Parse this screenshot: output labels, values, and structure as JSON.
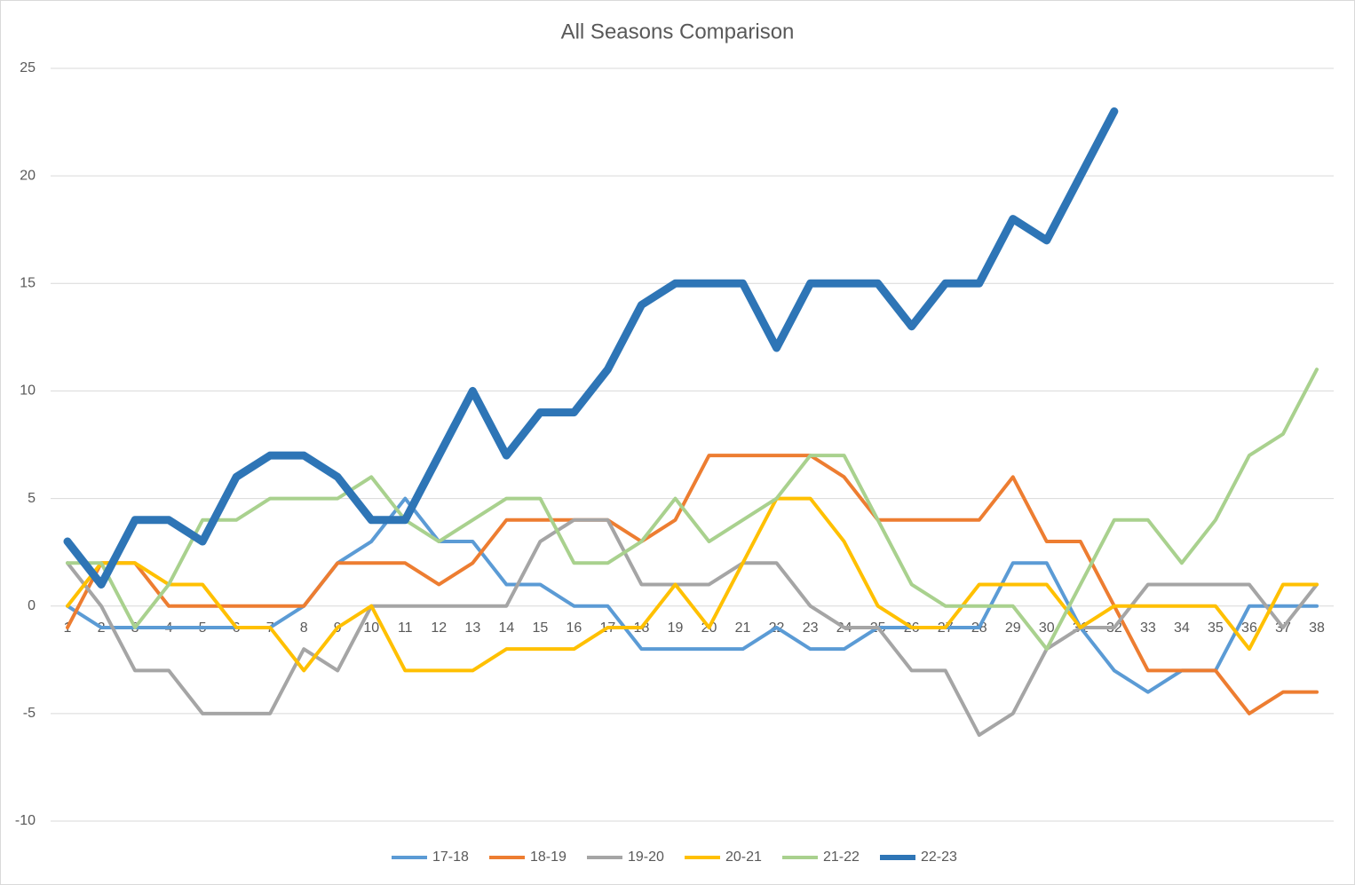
{
  "chart_data": {
    "type": "line",
    "title": "All Seasons Comparison",
    "categories": [
      "1",
      "2",
      "3",
      "4",
      "5",
      "6",
      "7",
      "8",
      "9",
      "10",
      "11",
      "12",
      "13",
      "14",
      "15",
      "16",
      "17",
      "18",
      "19",
      "20",
      "21",
      "22",
      "23",
      "24",
      "25",
      "26",
      "27",
      "28",
      "29",
      "30",
      "31",
      "32",
      "33",
      "34",
      "35",
      "36",
      "37",
      "38"
    ],
    "ylim": [
      -10,
      25
    ],
    "yticks": [
      -10,
      -5,
      0,
      5,
      10,
      15,
      20,
      25
    ],
    "grid": true,
    "legend": "bottom",
    "series": [
      {
        "name": "17-18",
        "color": "#5b9bd5",
        "width": 4,
        "values": [
          0,
          -1,
          -1,
          -1,
          -1,
          -1,
          -1,
          0,
          2,
          3,
          5,
          3,
          3,
          1,
          1,
          0,
          0,
          -2,
          -2,
          -2,
          -2,
          -1,
          -2,
          -2,
          -1,
          -1,
          -1,
          -1,
          2,
          2,
          -1,
          -3,
          -4,
          -3,
          -3,
          0,
          0,
          0
        ]
      },
      {
        "name": "18-19",
        "color": "#ed7d31",
        "width": 4,
        "values": [
          -1,
          2,
          2,
          0,
          0,
          0,
          0,
          0,
          2,
          2,
          2,
          1,
          2,
          4,
          4,
          4,
          4,
          3,
          4,
          7,
          7,
          7,
          7,
          6,
          4,
          4,
          4,
          4,
          6,
          3,
          3,
          0,
          -3,
          -3,
          -3,
          -5,
          -4,
          -4
        ]
      },
      {
        "name": "19-20",
        "color": "#a5a5a5",
        "width": 4,
        "values": [
          2,
          0,
          -3,
          -3,
          -5,
          -5,
          -5,
          -2,
          -3,
          0,
          0,
          0,
          0,
          0,
          3,
          4,
          4,
          1,
          1,
          1,
          2,
          2,
          0,
          -1,
          -1,
          -3,
          -3,
          -6,
          -5,
          -2,
          -1,
          -1,
          1,
          1,
          1,
          1,
          -1,
          1
        ]
      },
      {
        "name": "20-21",
        "color": "#ffc000",
        "width": 4,
        "values": [
          0,
          2,
          2,
          1,
          1,
          -1,
          -1,
          -3,
          -1,
          0,
          -3,
          -3,
          -3,
          -2,
          -2,
          -2,
          -1,
          -1,
          1,
          -1,
          2,
          5,
          5,
          3,
          0,
          -1,
          -1,
          1,
          1,
          1,
          -1,
          0,
          0,
          0,
          0,
          -2,
          1,
          1
        ]
      },
      {
        "name": "21-22",
        "color": "#a9d18e",
        "width": 4,
        "values": [
          2,
          2,
          -1,
          1,
          4,
          4,
          5,
          5,
          5,
          6,
          4,
          3,
          4,
          5,
          5,
          2,
          2,
          3,
          5,
          3,
          4,
          5,
          7,
          7,
          4,
          1,
          0,
          0,
          0,
          -2,
          1,
          4,
          4,
          2,
          4,
          7,
          8,
          11
        ]
      },
      {
        "name": "22-23",
        "color": "#2e75b6",
        "width": 9,
        "values": [
          3,
          1,
          4,
          4,
          3,
          6,
          7,
          7,
          6,
          4,
          4,
          7,
          10,
          7,
          9,
          9,
          11,
          14,
          15,
          15,
          15,
          12,
          15,
          15,
          15,
          13,
          15,
          15,
          18,
          17,
          20,
          23,
          null,
          null,
          null,
          null,
          null,
          null
        ]
      }
    ]
  }
}
